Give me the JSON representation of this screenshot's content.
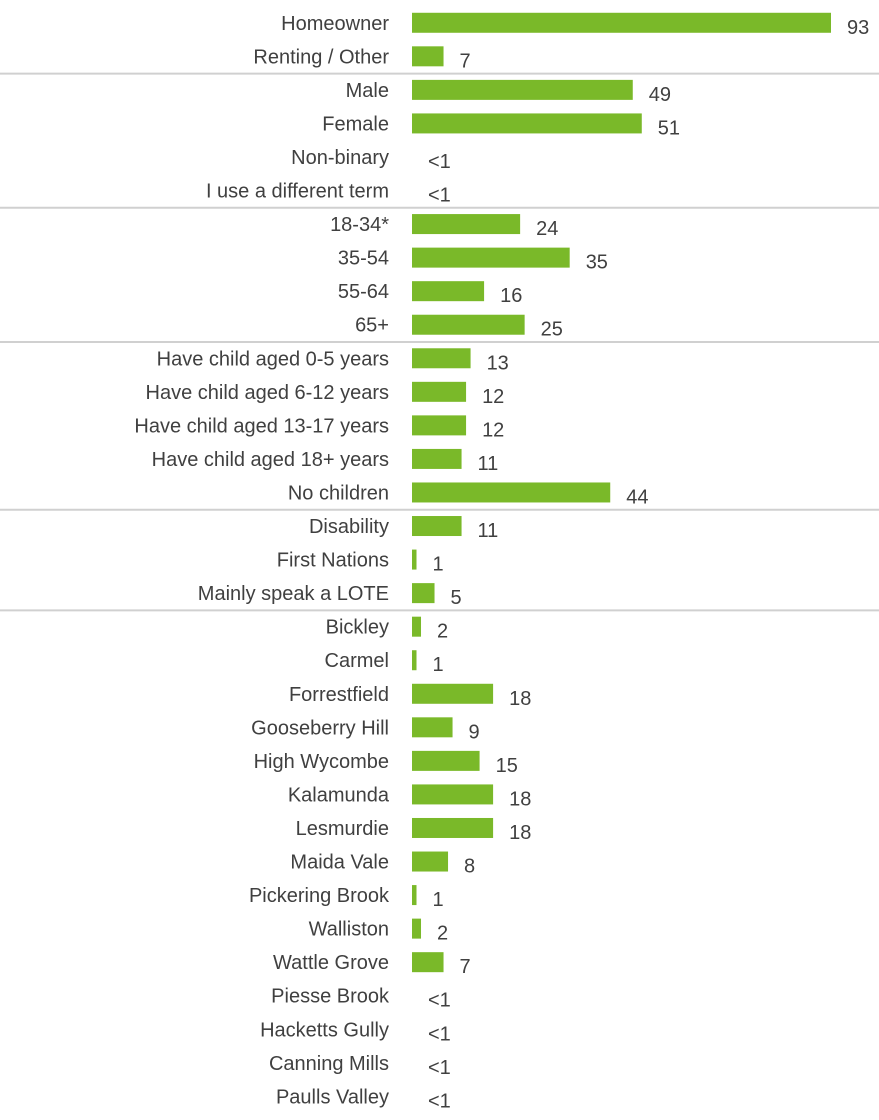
{
  "chart_data": {
    "type": "bar",
    "orientation": "horizontal",
    "xlim": [
      0,
      93
    ],
    "grid": false,
    "bar_color": "#7AB929",
    "separator_color": "#D0D0D0",
    "text_color": "#404040",
    "groups": [
      {
        "rows": [
          {
            "label": "Homeowner",
            "value": 93,
            "value_label": "93"
          },
          {
            "label": "Renting / Other",
            "value": 7,
            "value_label": "7"
          }
        ]
      },
      {
        "rows": [
          {
            "label": "Male",
            "value": 49,
            "value_label": "49"
          },
          {
            "label": "Female",
            "value": 51,
            "value_label": "51"
          },
          {
            "label": "Non-binary",
            "value": 0,
            "value_label": "<1"
          },
          {
            "label": "I use a different term",
            "value": 0,
            "value_label": "<1"
          }
        ]
      },
      {
        "rows": [
          {
            "label": "18-34*",
            "value": 24,
            "value_label": "24"
          },
          {
            "label": "35-54",
            "value": 35,
            "value_label": "35"
          },
          {
            "label": "55-64",
            "value": 16,
            "value_label": "16"
          },
          {
            "label": "65+",
            "value": 25,
            "value_label": "25"
          }
        ]
      },
      {
        "rows": [
          {
            "label": "Have child aged 0-5 years",
            "value": 13,
            "value_label": "13"
          },
          {
            "label": "Have child aged 6-12 years",
            "value": 12,
            "value_label": "12"
          },
          {
            "label": "Have child aged 13-17 years",
            "value": 12,
            "value_label": "12"
          },
          {
            "label": "Have child aged 18+ years",
            "value": 11,
            "value_label": "11"
          },
          {
            "label": "No children",
            "value": 44,
            "value_label": "44"
          }
        ]
      },
      {
        "rows": [
          {
            "label": "Disability",
            "value": 11,
            "value_label": "11"
          },
          {
            "label": "First Nations",
            "value": 1,
            "value_label": "1"
          },
          {
            "label": "Mainly speak a LOTE",
            "value": 5,
            "value_label": "5"
          }
        ]
      },
      {
        "rows": [
          {
            "label": "Bickley",
            "value": 2,
            "value_label": "2"
          },
          {
            "label": "Carmel",
            "value": 1,
            "value_label": "1"
          },
          {
            "label": "Forrestfield",
            "value": 18,
            "value_label": "18"
          },
          {
            "label": "Gooseberry Hill",
            "value": 9,
            "value_label": "9"
          },
          {
            "label": "High Wycombe",
            "value": 15,
            "value_label": "15"
          },
          {
            "label": "Kalamunda",
            "value": 18,
            "value_label": "18"
          },
          {
            "label": "Lesmurdie",
            "value": 18,
            "value_label": "18"
          },
          {
            "label": "Maida Vale",
            "value": 8,
            "value_label": "8"
          },
          {
            "label": "Pickering Brook",
            "value": 1,
            "value_label": "1"
          },
          {
            "label": "Walliston",
            "value": 2,
            "value_label": "2"
          },
          {
            "label": "Wattle Grove",
            "value": 7,
            "value_label": "7"
          },
          {
            "label": "Piesse Brook",
            "value": 0,
            "value_label": "<1"
          },
          {
            "label": "Hacketts Gully",
            "value": 0,
            "value_label": "<1"
          },
          {
            "label": "Canning Mills",
            "value": 0,
            "value_label": "<1"
          },
          {
            "label": "Paulls Valley",
            "value": 0,
            "value_label": "<1"
          }
        ]
      }
    ]
  }
}
